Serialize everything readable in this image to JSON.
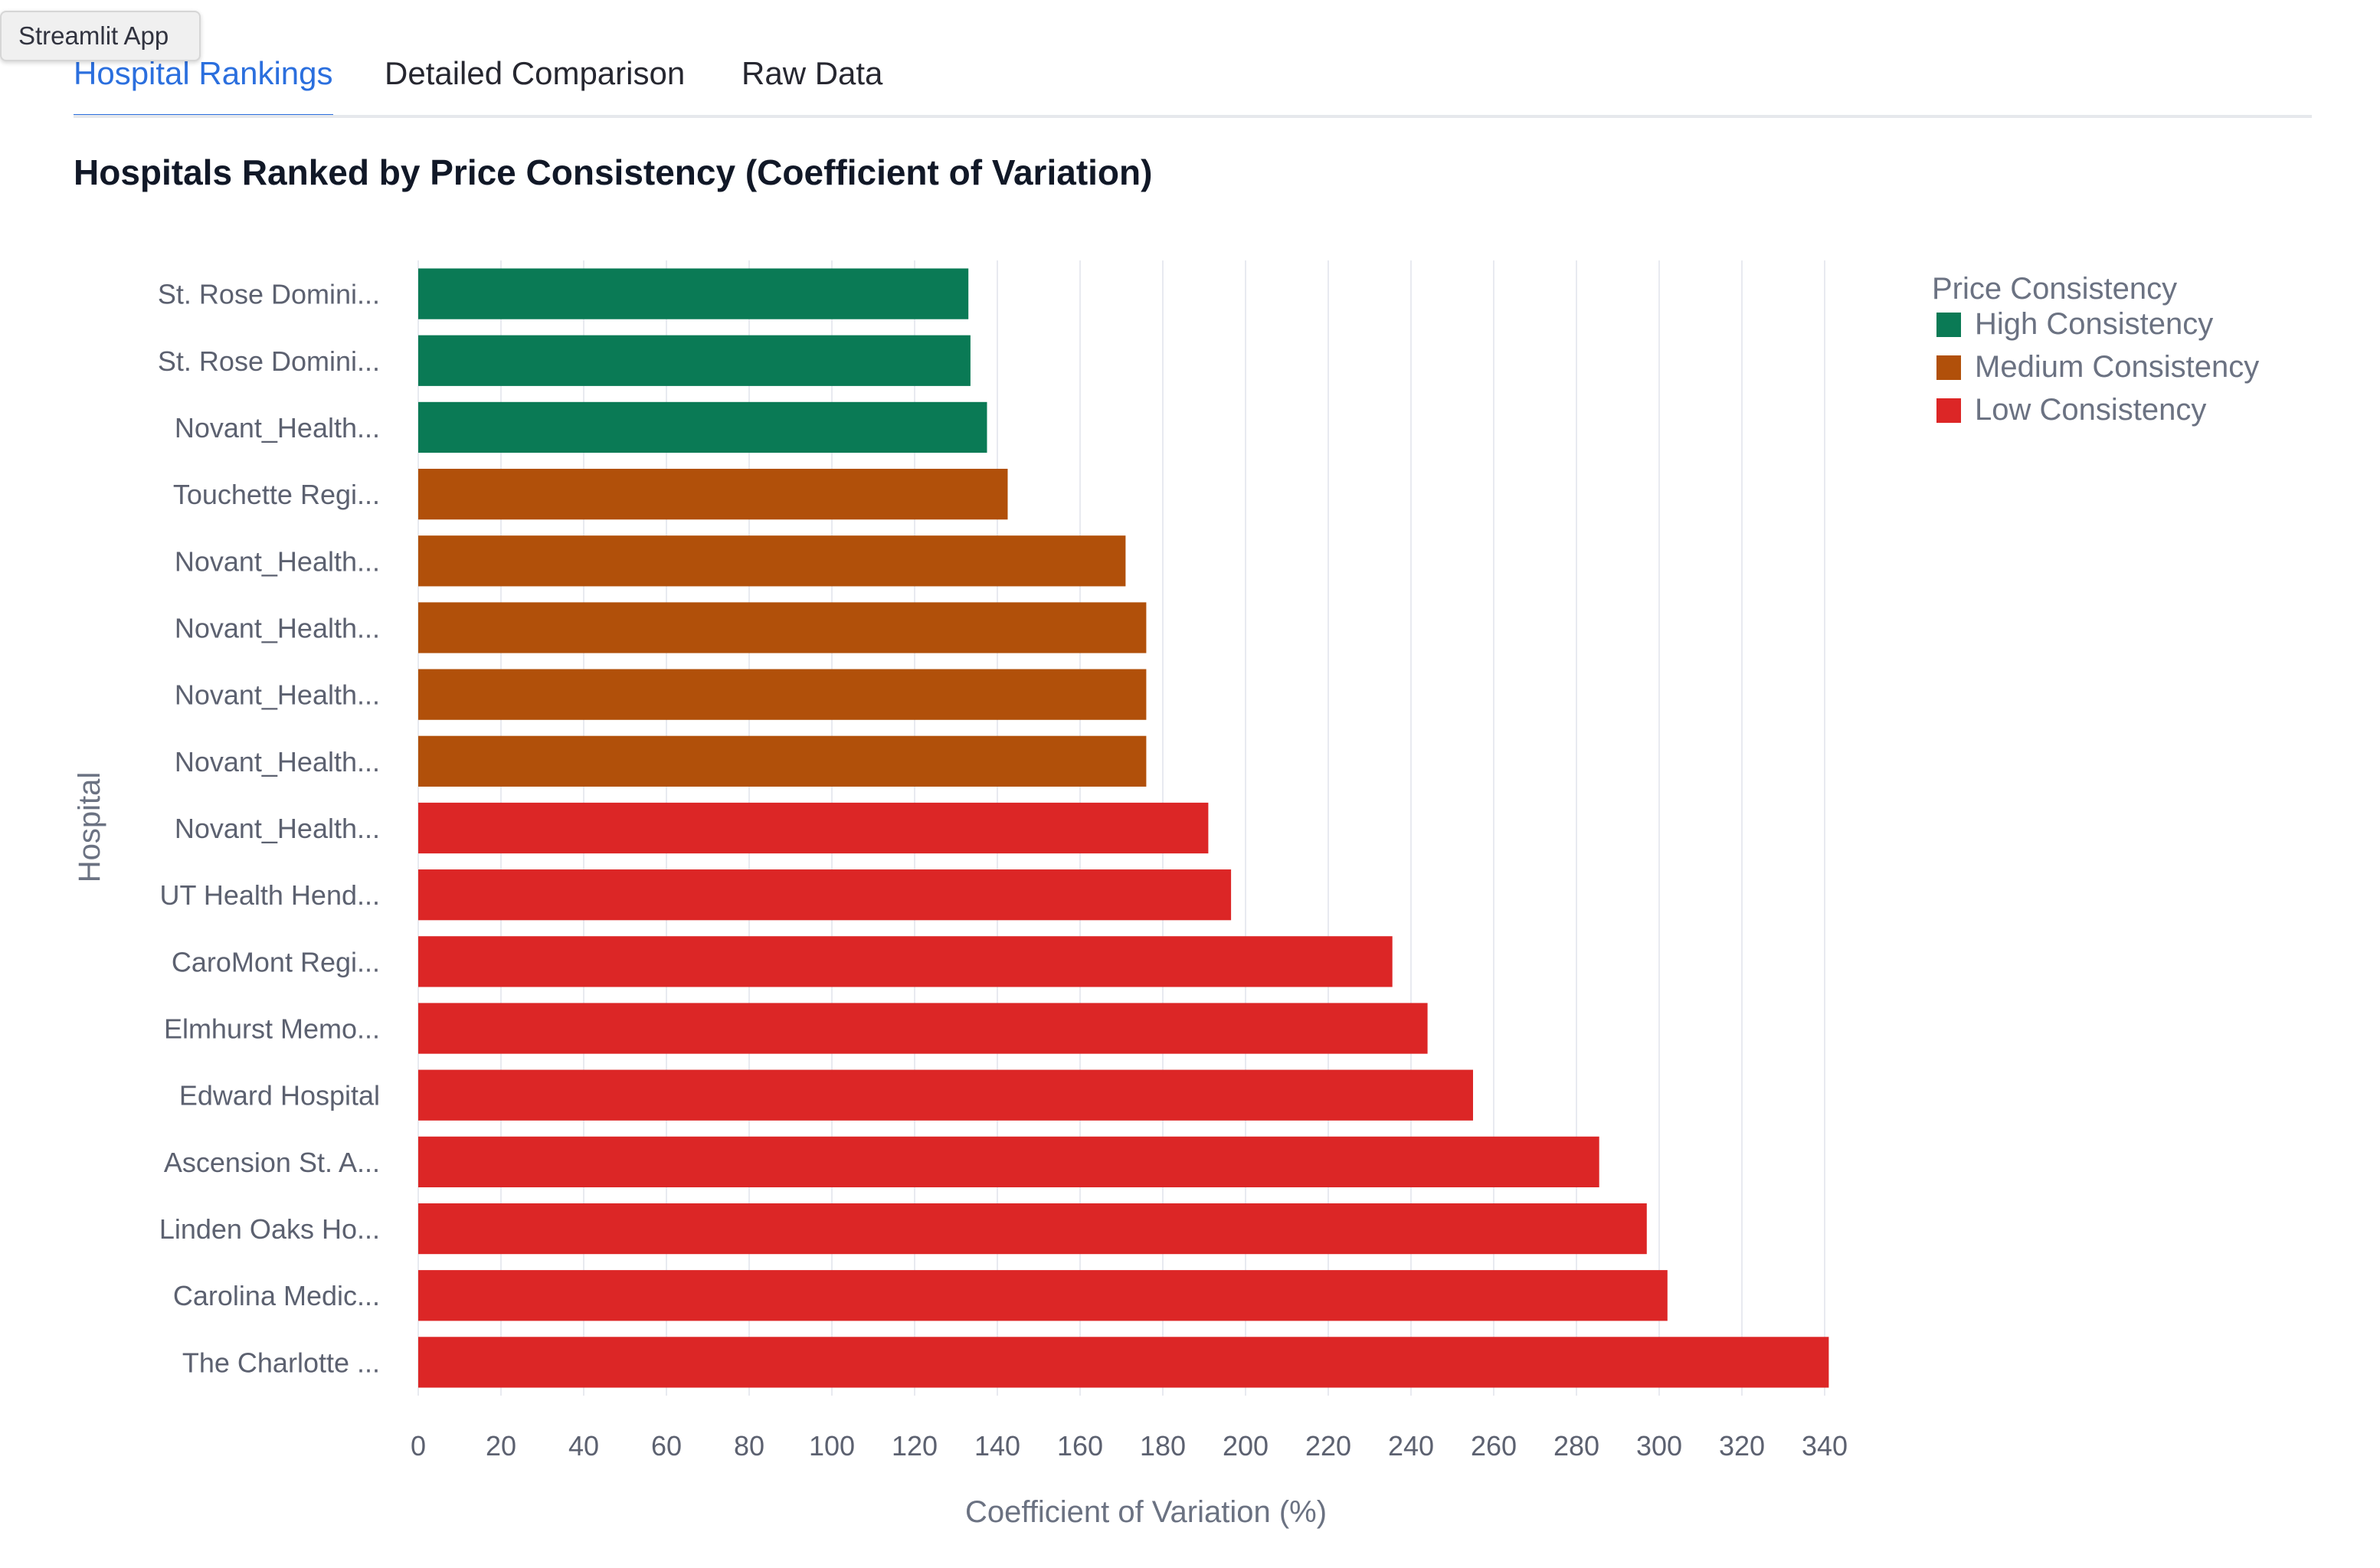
{
  "window": {
    "tooltip_text": "Streamlit App"
  },
  "tabs": [
    {
      "label": "Hospital Rankings",
      "active": true
    },
    {
      "label": "Detailed Comparison",
      "active": false
    },
    {
      "label": "Raw Data",
      "active": false
    }
  ],
  "page": {
    "chart_title": "Hospitals Ranked by Price Consistency (Coefficient of Variation)"
  },
  "colors": {
    "accent": "#2b6fde",
    "high": "#0a7a55",
    "medium": "#b1500a",
    "low": "#dc2626",
    "gridline": "#e8eaf0"
  },
  "chart_data": {
    "type": "bar",
    "orientation": "horizontal",
    "title": "Hospitals Ranked by Price Consistency (Coefficient of Variation)",
    "xlabel": "Coefficient of Variation (%)",
    "ylabel": "Hospital",
    "xlim": [
      0,
      340
    ],
    "xticks": [
      "0",
      "20",
      "40",
      "60",
      "80",
      "100",
      "120",
      "140",
      "160",
      "180",
      "200",
      "220",
      "240",
      "260",
      "280",
      "300",
      "320",
      "340"
    ],
    "grid": "vertical",
    "legend": {
      "title": "Price Consistency",
      "placement": "top-right",
      "items": [
        {
          "label": "High Consistency",
          "key": "high"
        },
        {
          "label": "Medium Consistency",
          "key": "medium"
        },
        {
          "label": "Low Consistency",
          "key": "low"
        }
      ]
    },
    "categories": [
      "St. Rose Domini...",
      "St. Rose Domini...",
      "Novant_Health...",
      "Touchette Regi...",
      "Novant_Health...",
      "Novant_Health...",
      "Novant_Health...",
      "Novant_Health...",
      "Novant_Health...",
      "UT Health Hend...",
      "CaroMont Regi...",
      "Elmhurst Memo...",
      "Edward Hospital",
      "Ascension St. A...",
      "Linden Oaks Ho...",
      "Carolina Medic...",
      "The Charlotte ..."
    ],
    "values": [
      133,
      133.5,
      137.5,
      142.5,
      171,
      176,
      176,
      176,
      191,
      196.5,
      235.5,
      244,
      255,
      285.5,
      297,
      302,
      341
    ],
    "consistency": [
      "high",
      "high",
      "high",
      "medium",
      "medium",
      "medium",
      "medium",
      "medium",
      "low",
      "low",
      "low",
      "low",
      "low",
      "low",
      "low",
      "low",
      "low"
    ]
  }
}
